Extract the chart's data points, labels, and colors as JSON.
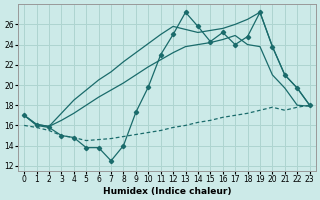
{
  "xlabel": "Humidex (Indice chaleur)",
  "bg_color": "#cceae8",
  "grid_color": "#aed4d0",
  "line_color": "#1a6b6b",
  "xlim": [
    -0.5,
    23.5
  ],
  "ylim": [
    11.5,
    28.0
  ],
  "xticks": [
    0,
    1,
    2,
    3,
    4,
    5,
    6,
    7,
    8,
    9,
    10,
    11,
    12,
    13,
    14,
    15,
    16,
    17,
    18,
    19,
    20,
    21,
    22,
    23
  ],
  "yticks": [
    12,
    14,
    16,
    18,
    20,
    22,
    24,
    26
  ],
  "s1_x": [
    0,
    1,
    2,
    3,
    4,
    5,
    6,
    7,
    8,
    9,
    10,
    11,
    12,
    13,
    14,
    15,
    16,
    17,
    18,
    19,
    20,
    21,
    22,
    23
  ],
  "s1_y": [
    17.0,
    16.0,
    15.8,
    15.0,
    14.8,
    13.8,
    13.8,
    12.5,
    14.0,
    17.3,
    19.8,
    23.0,
    25.0,
    27.2,
    25.8,
    24.3,
    25.2,
    24.0,
    24.8,
    27.2,
    23.8,
    21.0,
    19.7,
    18.0
  ],
  "s2_x": [
    0,
    1,
    2,
    3,
    4,
    5,
    6,
    7,
    8,
    9,
    10,
    11,
    12,
    13,
    14,
    15,
    16,
    17,
    18,
    19,
    20,
    21,
    22,
    23
  ],
  "s2_y": [
    17.0,
    16.1,
    15.9,
    17.2,
    18.5,
    19.5,
    20.5,
    21.3,
    22.3,
    23.2,
    24.1,
    25.0,
    25.8,
    25.5,
    25.2,
    25.4,
    25.6,
    26.0,
    26.5,
    27.2,
    23.8,
    21.0,
    19.7,
    18.0
  ],
  "s3_x": [
    0,
    1,
    2,
    3,
    4,
    5,
    6,
    7,
    8,
    9,
    10,
    11,
    12,
    13,
    14,
    15,
    16,
    17,
    18,
    19,
    20,
    21,
    22,
    23
  ],
  "s3_y": [
    17.0,
    16.1,
    15.9,
    16.5,
    17.2,
    18.0,
    18.8,
    19.5,
    20.2,
    21.0,
    21.8,
    22.5,
    23.2,
    23.8,
    24.0,
    24.2,
    24.5,
    24.9,
    24.0,
    23.8,
    21.0,
    19.7,
    18.0,
    17.9
  ],
  "s4_x": [
    0,
    1,
    2,
    3,
    4,
    5,
    6,
    7,
    8,
    9,
    10,
    11,
    12,
    13,
    14,
    15,
    16,
    17,
    18,
    19,
    20,
    21,
    22,
    23
  ],
  "s4_y": [
    16.0,
    15.8,
    15.5,
    15.0,
    14.8,
    14.5,
    14.6,
    14.7,
    14.9,
    15.1,
    15.3,
    15.5,
    15.8,
    16.0,
    16.3,
    16.5,
    16.8,
    17.0,
    17.2,
    17.5,
    17.8,
    17.5,
    17.8,
    18.0
  ]
}
